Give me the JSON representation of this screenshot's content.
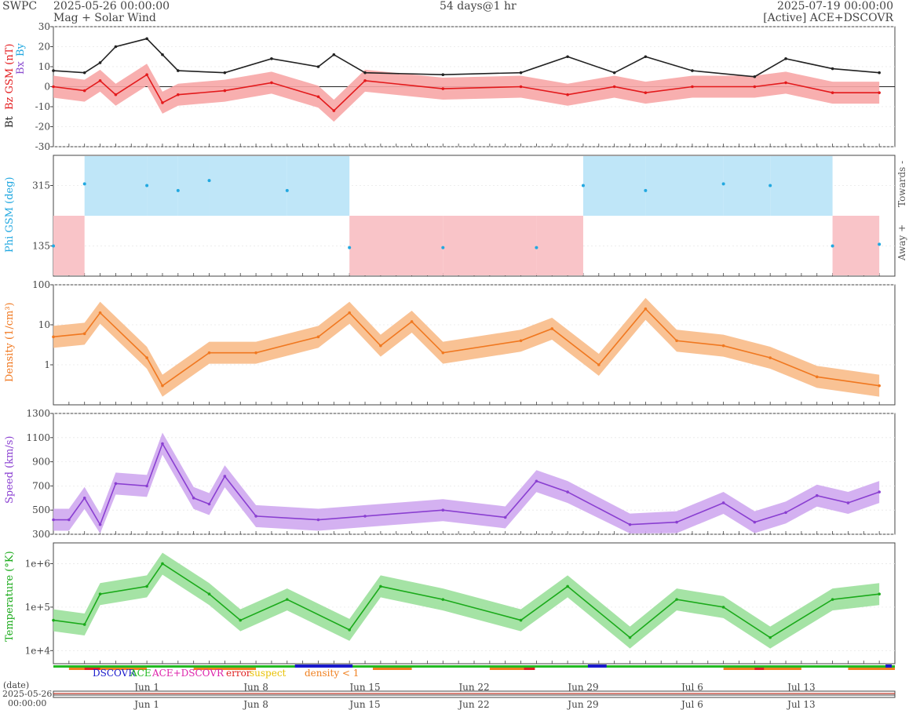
{
  "header": {
    "agency": "SWPC",
    "start_time": "2025-05-26 00:00:00",
    "subtitle": "Mag + Solar Wind",
    "span": "54 days@1 hr",
    "end_time": "2025-07-19 00:00:00",
    "source": "[Active] ACE+DSCOVR"
  },
  "colors": {
    "bt": "#222222",
    "bz": "#e31a1c",
    "bz_band": "#f7a6a6",
    "bx": "#8d4fd0",
    "by": "#22a8e0",
    "phi": "#22a8e0",
    "phi_towards": "#bfe6f8",
    "phi_away": "#f9c4c8",
    "density": "#f07820",
    "density_band": "#f8bb88",
    "speed": "#8a3fd1",
    "speed_band": "#cfa8f0",
    "temperature": "#1aaa1a",
    "temperature_band": "#9be09b",
    "dscovr": "#1a1acc",
    "ace": "#22bb22",
    "ace_dscovr": "#dd22aa",
    "error": "#e02020",
    "suspect": "#e8c000",
    "density_low": "#f08020"
  },
  "legend": {
    "dscovr": "DSCOVR",
    "ace": "ACE",
    "ace_dscovr": "ACE+DSCOVR",
    "error": "error",
    "suspect": "suspect",
    "density_low": "density < 1"
  },
  "date_axis": {
    "date_label": "(date)",
    "start_date": "2025-05-26",
    "start_clock": "00:00:00",
    "tick_labels": [
      "Jun 1",
      "Jun 8",
      "Jun 15",
      "Jun 22",
      "Jun 29",
      "Jul 6",
      "Jul 13"
    ]
  },
  "chart_data": [
    {
      "type": "line",
      "panel": "magnetic-field",
      "ylabel": "Bt  Bz GSM (nT)",
      "ylabel_bt": "Bt",
      "ylabel_bz": "Bz GSM (nT)",
      "ylabel_bx": "Bx",
      "ylabel_by": "By",
      "ylim": [
        -30,
        30
      ],
      "ytick_labels": [
        "30",
        "20",
        "10",
        "0",
        "-10",
        "-20",
        "-30"
      ],
      "x": [
        "2025-05-26",
        "2025-05-28",
        "2025-05-29",
        "2025-05-30",
        "2025-06-01",
        "2025-06-02",
        "2025-06-03",
        "2025-06-06",
        "2025-06-09",
        "2025-06-12",
        "2025-06-13",
        "2025-06-15",
        "2025-06-20",
        "2025-06-25",
        "2025-06-28",
        "2025-07-01",
        "2025-07-03",
        "2025-07-06",
        "2025-07-10",
        "2025-07-12",
        "2025-07-15",
        "2025-07-18"
      ],
      "series": [
        {
          "name": "Bt",
          "values": [
            8,
            7,
            12,
            20,
            24,
            16,
            8,
            7,
            14,
            10,
            16,
            7,
            6,
            7,
            15,
            7,
            15,
            8,
            5,
            14,
            9,
            7
          ]
        },
        {
          "name": "Bz",
          "values": [
            0,
            -2,
            3,
            -4,
            6,
            -8,
            -4,
            -2,
            2,
            -5,
            -12,
            3,
            -1,
            0,
            -4,
            0,
            -3,
            0,
            0,
            2,
            -3,
            -3
          ]
        }
      ]
    },
    {
      "type": "scatter",
      "panel": "phi-angle",
      "ylabel": "Phi GSM (deg)",
      "ylim": [
        45,
        405
      ],
      "ytick_labels": [
        "315",
        "135"
      ],
      "right_labels": [
        "Towards -",
        "Away +"
      ],
      "x": [
        "2025-05-26",
        "2025-05-28",
        "2025-06-01",
        "2025-06-03",
        "2025-06-05",
        "2025-06-10",
        "2025-06-14",
        "2025-06-20",
        "2025-06-26",
        "2025-06-29",
        "2025-07-03",
        "2025-07-08",
        "2025-07-11",
        "2025-07-15",
        "2025-07-18"
      ],
      "values": [
        135,
        320,
        315,
        300,
        330,
        300,
        130,
        130,
        130,
        315,
        300,
        320,
        315,
        135,
        140
      ]
    },
    {
      "type": "line",
      "panel": "density",
      "ylabel": "Density (1/cm³)",
      "yscale": "log",
      "ylim": [
        0.1,
        100
      ],
      "ytick_labels": [
        "100",
        "10",
        "1"
      ],
      "x": [
        "2025-05-26",
        "2025-05-28",
        "2025-05-29",
        "2025-06-01",
        "2025-06-02",
        "2025-06-05",
        "2025-06-08",
        "2025-06-12",
        "2025-06-14",
        "2025-06-16",
        "2025-06-18",
        "2025-06-20",
        "2025-06-25",
        "2025-06-27",
        "2025-06-30",
        "2025-07-03",
        "2025-07-05",
        "2025-07-08",
        "2025-07-11",
        "2025-07-14",
        "2025-07-18"
      ],
      "values": [
        5,
        6,
        20,
        1.5,
        0.3,
        2,
        2,
        5,
        20,
        3,
        12,
        2,
        4,
        8,
        1,
        25,
        4,
        3,
        1.5,
        0.5,
        0.3
      ]
    },
    {
      "type": "line",
      "panel": "speed",
      "ylabel": "Speed (km/s)",
      "ylim": [
        300,
        1300
      ],
      "ytick_labels": [
        "1300",
        "1100",
        "900",
        "700",
        "500",
        "300"
      ],
      "x": [
        "2025-05-26",
        "2025-05-27",
        "2025-05-28",
        "2025-05-29",
        "2025-05-30",
        "2025-06-01",
        "2025-06-02",
        "2025-06-04",
        "2025-06-05",
        "2025-06-06",
        "2025-06-08",
        "2025-06-12",
        "2025-06-15",
        "2025-06-20",
        "2025-06-24",
        "2025-06-26",
        "2025-06-28",
        "2025-07-02",
        "2025-07-05",
        "2025-07-08",
        "2025-07-10",
        "2025-07-12",
        "2025-07-14",
        "2025-07-16",
        "2025-07-18"
      ],
      "values": [
        420,
        420,
        600,
        380,
        720,
        700,
        1050,
        600,
        550,
        780,
        450,
        420,
        450,
        500,
        440,
        740,
        650,
        380,
        400,
        560,
        400,
        480,
        620,
        560,
        650
      ]
    },
    {
      "type": "line",
      "panel": "temperature",
      "ylabel": "Temperature (°K)",
      "yscale": "log",
      "ylim": [
        5000,
        3000000
      ],
      "ytick_labels": [
        "1e+6",
        "1e+5",
        "1e+4"
      ],
      "x": [
        "2025-05-26",
        "2025-05-28",
        "2025-05-29",
        "2025-06-01",
        "2025-06-02",
        "2025-06-05",
        "2025-06-07",
        "2025-06-10",
        "2025-06-14",
        "2025-06-16",
        "2025-06-20",
        "2025-06-25",
        "2025-06-28",
        "2025-07-02",
        "2025-07-05",
        "2025-07-08",
        "2025-07-11",
        "2025-07-15",
        "2025-07-18"
      ],
      "values": [
        50000,
        40000,
        200000,
        300000,
        1000000,
        200000,
        50000,
        150000,
        30000,
        300000,
        150000,
        50000,
        300000,
        20000,
        150000,
        100000,
        20000,
        150000,
        200000
      ]
    }
  ]
}
